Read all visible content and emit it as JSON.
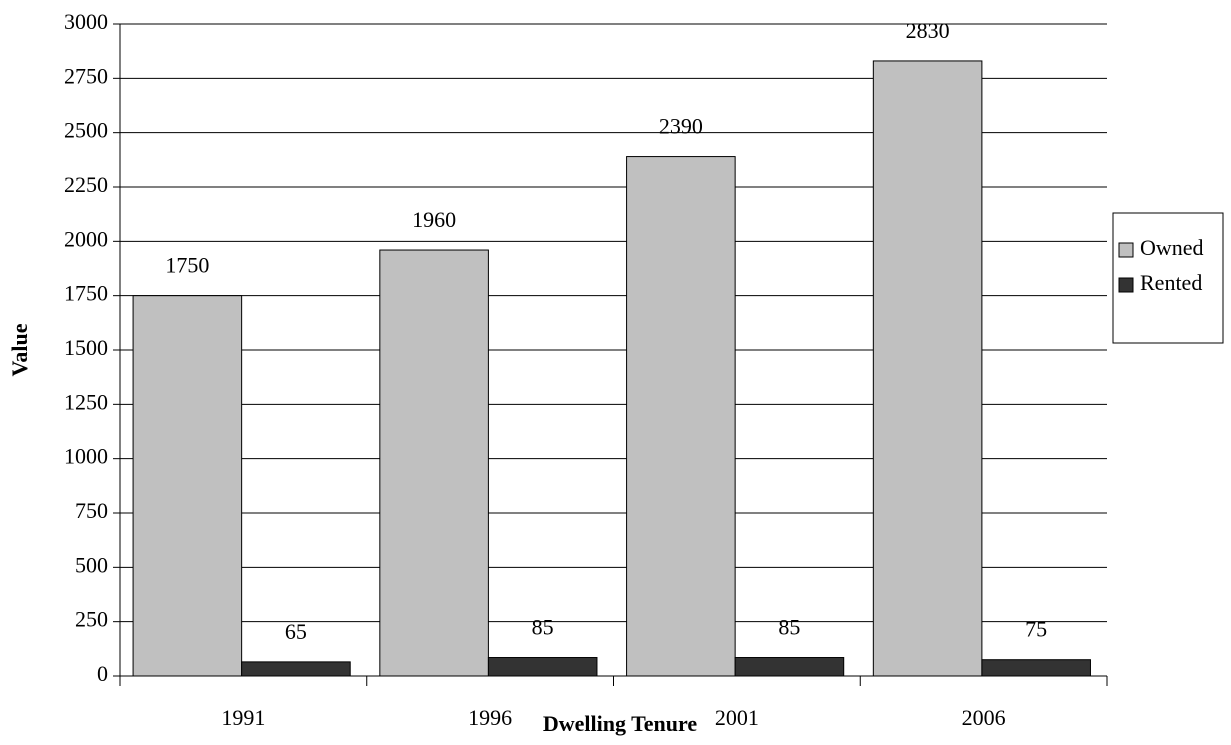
{
  "chart_data": {
    "type": "bar",
    "x_label": "Dwelling Tenure",
    "y_label": "Value",
    "categories": [
      "1991",
      "1996",
      "2001",
      "2006"
    ],
    "series": [
      {
        "name": "Owned",
        "color": "#c0c0c0",
        "values": [
          1750,
          1960,
          2390,
          2830
        ]
      },
      {
        "name": "Rented",
        "color": "#333333",
        "values": [
          65,
          85,
          85,
          75
        ]
      }
    ],
    "ylim": [
      0,
      3000
    ],
    "yticks": [
      0,
      250,
      500,
      750,
      1000,
      1250,
      1500,
      1750,
      2000,
      2250,
      2500,
      2750,
      3000
    ],
    "grid": true,
    "legend": "right"
  }
}
